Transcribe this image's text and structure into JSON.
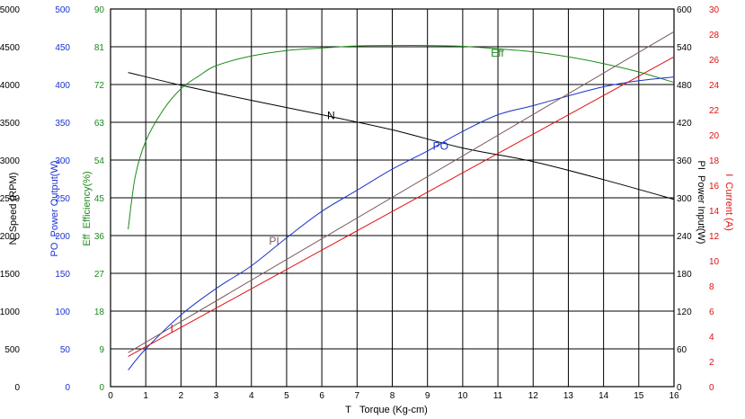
{
  "chart_data": {
    "type": "line",
    "x": {
      "label_letter": "T",
      "label": "Torque (Kg-cm)",
      "range": [
        0,
        16
      ],
      "ticks": [
        0,
        1,
        2,
        3,
        4,
        5,
        6,
        7,
        8,
        9,
        10,
        11,
        12,
        13,
        14,
        15,
        16
      ]
    },
    "left_axes": [
      {
        "id": "N",
        "letter": "N",
        "label": "Speed (RPM)",
        "color": "#000000",
        "range": [
          0,
          5000
        ],
        "ticks": [
          "0",
          "500",
          "1000",
          "1500",
          "2000",
          "2500",
          "3000",
          "3500",
          "4000",
          "4500",
          "5000"
        ]
      },
      {
        "id": "PO",
        "letter": "PO",
        "label": "Power Output(W)",
        "color": "#1a33cc",
        "range": [
          0,
          500
        ],
        "ticks": [
          "0",
          "50",
          "100",
          "150",
          "200",
          "250",
          "300",
          "350",
          "400",
          "450",
          "500"
        ]
      },
      {
        "id": "Eff",
        "letter": "Eff",
        "label": "Efficiency(%)",
        "color": "#1a8a1a",
        "range": [
          0,
          90
        ],
        "ticks": [
          "0",
          "9",
          "18",
          "27",
          "36",
          "45",
          "54",
          "63",
          "72",
          "81",
          "90"
        ]
      }
    ],
    "right_axes": [
      {
        "id": "PI",
        "letter": "PI",
        "label": "Power Input(W)",
        "color": "#000000",
        "range": [
          0,
          600
        ],
        "ticks": [
          "0",
          "60",
          "120",
          "180",
          "240",
          "300",
          "360",
          "420",
          "480",
          "540",
          "600"
        ]
      },
      {
        "id": "I",
        "letter": "I",
        "label": "Current (A)",
        "color": "#e01010",
        "range": [
          0,
          30
        ],
        "ticks": [
          "0",
          "2",
          "4",
          "6",
          "8",
          "10",
          "12",
          "14",
          "16",
          "18",
          "20",
          "22",
          "24",
          "26",
          "28",
          "30"
        ]
      }
    ],
    "grid": true,
    "series": [
      {
        "name": "N",
        "axis": "N",
        "color": "#000000",
        "points": [
          [
            0.5,
            4160
          ],
          [
            2,
            3990
          ],
          [
            4,
            3790
          ],
          [
            6,
            3600
          ],
          [
            8,
            3400
          ],
          [
            10,
            3160
          ],
          [
            12,
            2980
          ],
          [
            14,
            2740
          ],
          [
            16,
            2480
          ]
        ]
      },
      {
        "name": "Eff",
        "axis": "Eff",
        "color": "#1a8a1a",
        "points": [
          [
            0.5,
            37.5
          ],
          [
            0.7,
            50
          ],
          [
            1,
            58.5
          ],
          [
            1.5,
            66
          ],
          [
            2,
            71
          ],
          [
            2.5,
            74
          ],
          [
            3,
            76.5
          ],
          [
            4,
            78.8
          ],
          [
            5,
            80.1
          ],
          [
            6,
            80.7
          ],
          [
            7,
            81.2
          ],
          [
            8,
            81.3
          ],
          [
            9,
            81.3
          ],
          [
            10,
            81.1
          ],
          [
            11,
            80.5
          ],
          [
            12,
            79.8
          ],
          [
            13,
            78.6
          ],
          [
            14,
            77
          ],
          [
            15,
            75
          ],
          [
            16,
            72.5
          ]
        ]
      },
      {
        "name": "PO",
        "axis": "PO",
        "color": "#1a33cc",
        "points": [
          [
            0.5,
            22
          ],
          [
            1,
            50
          ],
          [
            2,
            95
          ],
          [
            3,
            130
          ],
          [
            4,
            160
          ],
          [
            5,
            197
          ],
          [
            6,
            232
          ],
          [
            7,
            260
          ],
          [
            8,
            288
          ],
          [
            9,
            312
          ],
          [
            10,
            338
          ],
          [
            11,
            360
          ],
          [
            12,
            372
          ],
          [
            13,
            385
          ],
          [
            14,
            397
          ],
          [
            15,
            405
          ],
          [
            16,
            410
          ]
        ]
      },
      {
        "name": "PI",
        "axis": "PI",
        "color": "#7a5a5a",
        "points": [
          [
            0.5,
            54
          ],
          [
            16,
            564
          ]
        ]
      },
      {
        "name": "I",
        "axis": "I",
        "color": "#e01010",
        "points": [
          [
            0.5,
            2.4
          ],
          [
            16,
            26.2
          ]
        ]
      }
    ]
  }
}
